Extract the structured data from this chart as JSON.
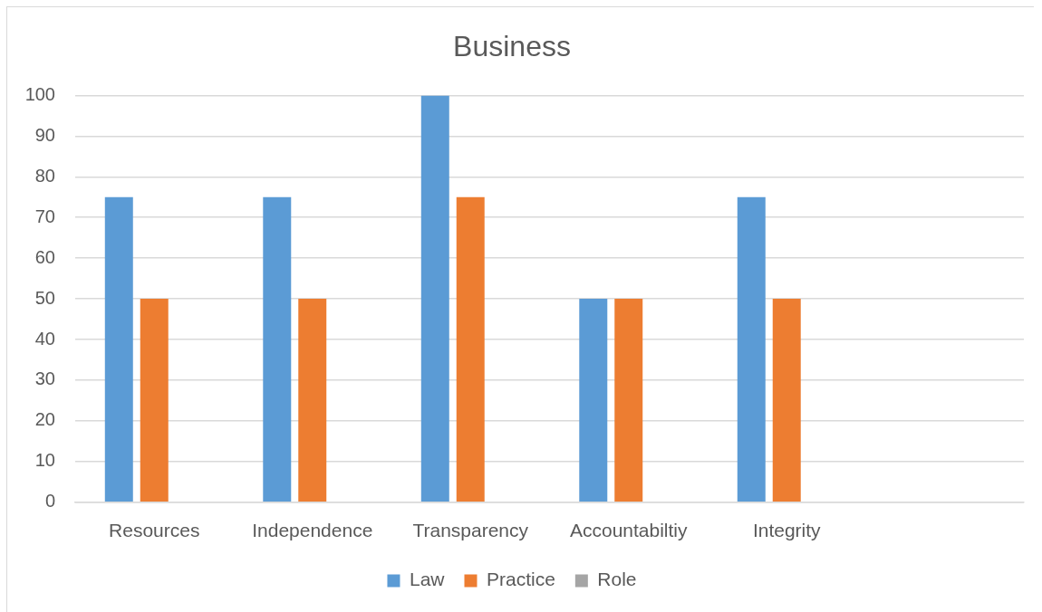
{
  "chart_data": {
    "type": "bar",
    "title": "Business",
    "categories": [
      "Resources",
      "Independence",
      "Transparency",
      "Accountabiltiy",
      "Integrity",
      null
    ],
    "series": [
      {
        "name": "Law",
        "color": "#5b9bd5",
        "values": [
          75,
          75,
          100,
          50,
          75,
          null
        ]
      },
      {
        "name": "Practice",
        "color": "#ed7d31",
        "values": [
          50,
          50,
          75,
          50,
          50,
          null
        ]
      },
      {
        "name": "Role",
        "color": "#a5a5a5",
        "values": [
          null,
          null,
          null,
          null,
          null,
          null
        ]
      }
    ],
    "ylim": [
      0,
      100
    ],
    "yticks": [
      0,
      10,
      20,
      30,
      40,
      50,
      60,
      70,
      80,
      90,
      100
    ],
    "grid": "y",
    "legend": "bottom"
  }
}
